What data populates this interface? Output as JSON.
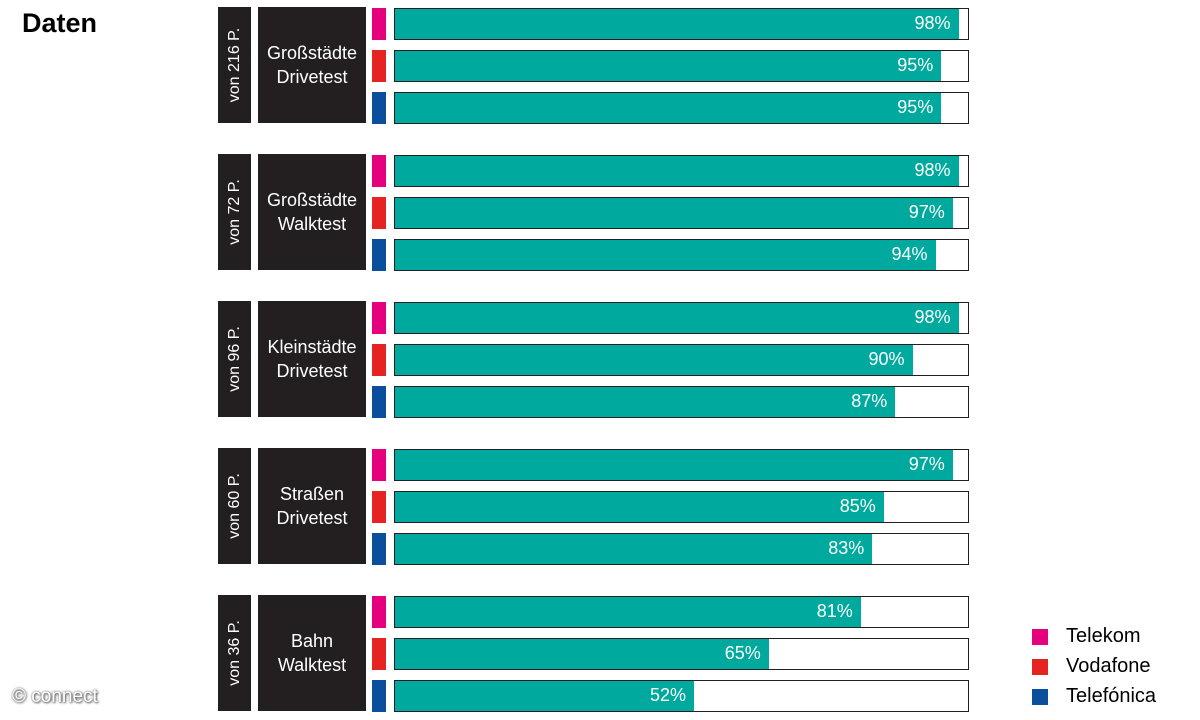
{
  "chart_data": {
    "type": "bar",
    "title": "Daten",
    "group_labels": [
      "von 216 P.",
      "von 72 P.",
      "von 96 P.",
      "von 60 P.",
      "von 36 P."
    ],
    "categories": [
      "Großstädte Drivetest",
      "Großstädte Walktest",
      "Kleinstädte Drivetest",
      "Straßen Drivetest",
      "Bahn Walktest"
    ],
    "bar_color": "#00a99d",
    "xlim": [
      0,
      100
    ],
    "series": [
      {
        "name": "Telekom",
        "color": "#e5007d",
        "values": [
          98,
          98,
          98,
          97,
          81
        ],
        "value_labels": [
          "98%",
          "98%",
          "98%",
          "97%",
          "81%"
        ]
      },
      {
        "name": "Vodafone",
        "color": "#e52421",
        "values": [
          95,
          97,
          90,
          85,
          65
        ],
        "value_labels": [
          "95%",
          "97%",
          "90%",
          "85%",
          "65%"
        ]
      },
      {
        "name": "Telefónica",
        "color": "#0b4e9b",
        "values": [
          95,
          94,
          87,
          83,
          52
        ],
        "value_labels": [
          "95%",
          "94%",
          "87%",
          "83%",
          "52%"
        ]
      }
    ],
    "watermark": "© connect"
  }
}
